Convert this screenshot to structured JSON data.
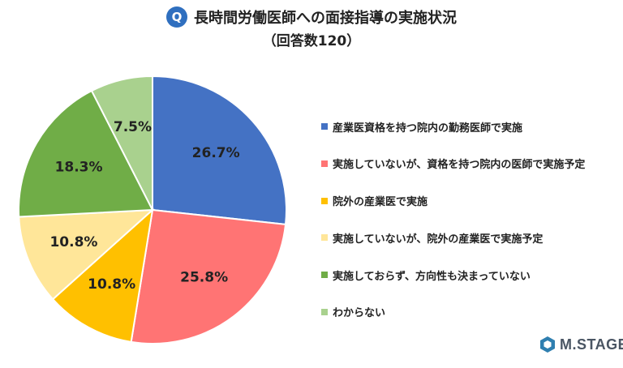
{
  "header": {
    "badge": "Q",
    "title": "長時間労働医師への面接指導の実施状況",
    "subtitle": "（回答数120）"
  },
  "brand": {
    "name": "M.STAGE",
    "color": "#2f7fb0"
  },
  "chart_data": {
    "type": "pie",
    "start": "12 o'clock",
    "direction": "clockwise",
    "legend_position": "right",
    "slices": [
      {
        "label": "産業医資格を持つ院内の勤務医師で実施",
        "value": 26.7,
        "display": "26.7%",
        "color": "#4472c4"
      },
      {
        "label": "実施していないが、資格を持つ院内の医師で実施予定",
        "value": 25.8,
        "display": "25.8%",
        "color": "#ff7474"
      },
      {
        "label": "院外の産業医で実施",
        "value": 10.8,
        "display": "10.8%",
        "color": "#ffc000"
      },
      {
        "label": "実施していないが、院外の産業医で実施予定",
        "value": 10.8,
        "display": "10.8%",
        "color": "#ffe699"
      },
      {
        "label": "実施しておらず、方向性も決まっていない",
        "value": 18.3,
        "display": "18.3%",
        "color": "#70ad47"
      },
      {
        "label": "わからない",
        "value": 7.5,
        "display": "7.5%",
        "color": "#a9d18e"
      }
    ]
  }
}
